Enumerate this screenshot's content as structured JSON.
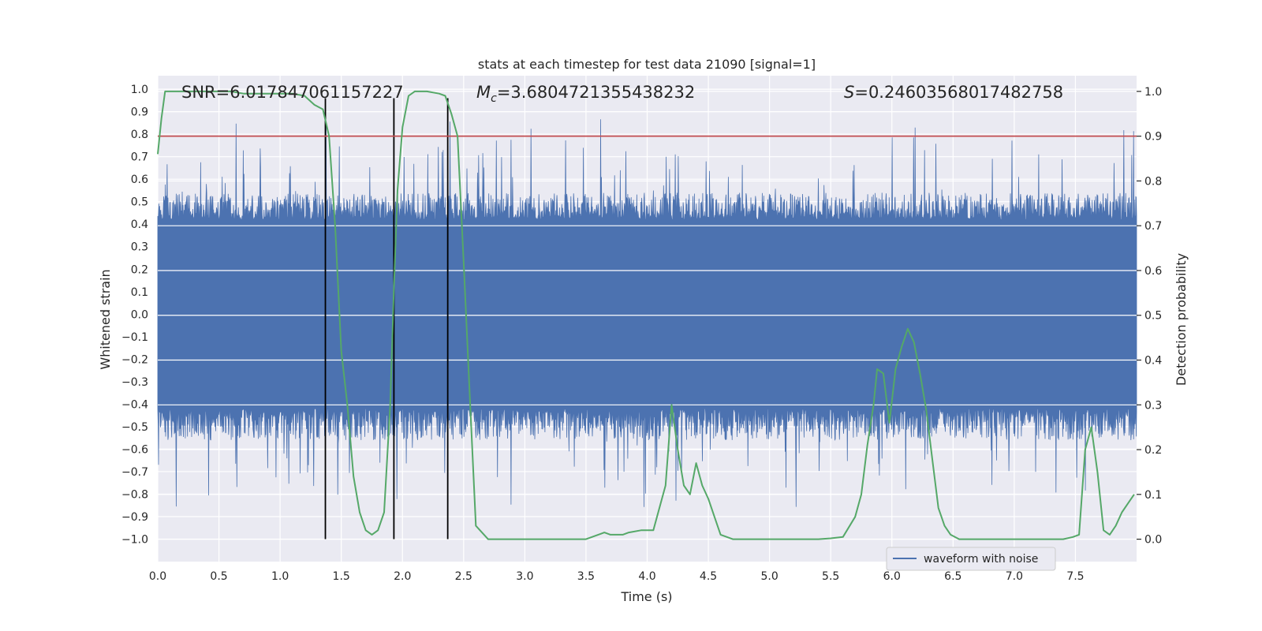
{
  "chart_data": {
    "type": "line",
    "title": "stats at each timestep for test data 21090 [signal=1]",
    "xlabel": "Time (s)",
    "ylabel_left": "Whitened strain",
    "ylabel_right": "Detection probability",
    "xlim": [
      0,
      8.0
    ],
    "ylim_left": [
      -1.1,
      1.06
    ],
    "ylim_right": [
      -0.05,
      1.035
    ],
    "x_ticks": [
      0.0,
      0.5,
      1.0,
      1.5,
      2.0,
      2.5,
      3.0,
      3.5,
      4.0,
      4.5,
      5.0,
      5.5,
      6.0,
      6.5,
      7.0,
      7.5
    ],
    "x_tick_labels": [
      "0.0",
      "0.5",
      "1.0",
      "1.5",
      "2.0",
      "2.5",
      "3.0",
      "3.5",
      "4.0",
      "4.5",
      "5.0",
      "5.5",
      "6.0",
      "6.5",
      "7.0",
      "7.5"
    ],
    "y_ticks_left": [
      1.0,
      0.9,
      0.8,
      0.7,
      0.6,
      0.5,
      0.4,
      0.3,
      0.2,
      0.1,
      0.0,
      -0.1,
      -0.2,
      -0.3,
      -0.4,
      -0.5,
      -0.6,
      -0.7,
      -0.8,
      -0.9,
      -1.0
    ],
    "y_tick_labels_left": [
      "1.0",
      "0.9",
      "0.8",
      "0.7",
      "0.6",
      "0.5",
      "0.4",
      "0.3",
      "0.2",
      "0.1",
      "0.0",
      "−0.1",
      "−0.2",
      "−0.3",
      "−0.4",
      "−0.5",
      "−0.6",
      "−0.7",
      "−0.8",
      "−0.9",
      "−1.0"
    ],
    "y_ticks_right": [
      1.0,
      0.9,
      0.8,
      0.7,
      0.6,
      0.5,
      0.4,
      0.3,
      0.2,
      0.1,
      0.0
    ],
    "y_tick_labels_right": [
      "1.0",
      "0.9",
      "0.8",
      "0.7",
      "0.6",
      "0.5",
      "0.4",
      "0.3",
      "0.2",
      "0.1",
      "0.0"
    ],
    "annotations": {
      "snr": "SNR=6.017847061157227",
      "mc_symbol": "M",
      "mc_sub": "c",
      "mc_value": "=3.6804721355438232",
      "s_symbol": "S",
      "s_value": "=0.24603568017482758"
    },
    "threshold": {
      "value": 0.9,
      "axis": "right",
      "color": "#c44e52"
    },
    "vertical_markers": [
      1.37,
      1.93,
      2.37
    ],
    "waveform": {
      "name": "waveform with noise",
      "color": "#4c72b0",
      "core_amplitude": 0.42,
      "seed": 21090
    },
    "series": [
      {
        "name": "detection probability",
        "axis": "right",
        "color": "#55a868",
        "x": [
          0.0,
          0.03,
          0.06,
          0.1,
          0.2,
          0.3,
          0.4,
          0.5,
          0.6,
          0.7,
          0.8,
          0.9,
          1.0,
          1.1,
          1.2,
          1.28,
          1.35,
          1.4,
          1.45,
          1.5,
          1.55,
          1.6,
          1.65,
          1.7,
          1.75,
          1.8,
          1.85,
          1.9,
          1.93,
          1.96,
          2.0,
          2.05,
          2.1,
          2.2,
          2.3,
          2.35,
          2.4,
          2.45,
          2.5,
          2.55,
          2.6,
          2.7,
          2.8,
          3.0,
          3.2,
          3.4,
          3.5,
          3.6,
          3.65,
          3.7,
          3.8,
          3.85,
          3.95,
          4.05,
          4.15,
          4.2,
          4.25,
          4.3,
          4.35,
          4.4,
          4.45,
          4.5,
          4.55,
          4.6,
          4.7,
          4.8,
          5.0,
          5.2,
          5.4,
          5.5,
          5.6,
          5.7,
          5.75,
          5.8,
          5.85,
          5.88,
          5.93,
          5.98,
          6.03,
          6.08,
          6.13,
          6.18,
          6.23,
          6.28,
          6.33,
          6.38,
          6.43,
          6.48,
          6.55,
          6.6,
          6.7,
          6.8,
          7.0,
          7.2,
          7.3,
          7.4,
          7.48,
          7.53,
          7.58,
          7.63,
          7.68,
          7.73,
          7.78,
          7.83,
          7.88,
          7.93,
          7.98
        ],
        "values": [
          0.86,
          0.94,
          1.0,
          1.0,
          1.0,
          1.0,
          1.0,
          1.0,
          1.0,
          0.995,
          0.995,
          0.995,
          0.995,
          0.995,
          0.99,
          0.97,
          0.96,
          0.9,
          0.7,
          0.42,
          0.3,
          0.14,
          0.06,
          0.02,
          0.01,
          0.02,
          0.06,
          0.3,
          0.56,
          0.78,
          0.92,
          0.99,
          1.0,
          1.0,
          0.995,
          0.99,
          0.95,
          0.9,
          0.62,
          0.32,
          0.03,
          0.0,
          0.0,
          0.0,
          0.0,
          0.0,
          0.0,
          0.01,
          0.015,
          0.01,
          0.01,
          0.015,
          0.02,
          0.02,
          0.12,
          0.3,
          0.2,
          0.12,
          0.1,
          0.17,
          0.12,
          0.09,
          0.05,
          0.01,
          0.0,
          0.0,
          0.0,
          0.0,
          0.0,
          0.002,
          0.005,
          0.05,
          0.1,
          0.21,
          0.3,
          0.38,
          0.37,
          0.26,
          0.38,
          0.43,
          0.47,
          0.44,
          0.37,
          0.29,
          0.18,
          0.07,
          0.03,
          0.01,
          0.0,
          0.0,
          0.0,
          0.0,
          0.0,
          0.0,
          0.0,
          0.0,
          0.005,
          0.01,
          0.2,
          0.25,
          0.15,
          0.02,
          0.01,
          0.03,
          0.06,
          0.08,
          0.1
        ]
      }
    ],
    "legend_placement": "lower-right",
    "grid": true,
    "colors": {
      "axes_bg": "#eaeaf2",
      "grid": "#ffffff",
      "marker_line": "#000000"
    }
  }
}
